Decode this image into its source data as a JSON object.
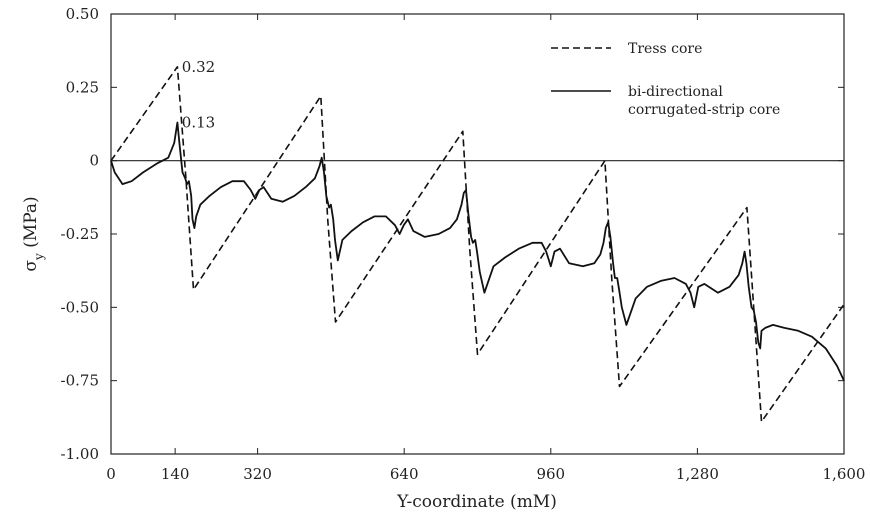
{
  "chart_data": {
    "type": "line",
    "title": "",
    "xlabel": "Y-coordinate (mM)",
    "ylabel": "σy (MPa)",
    "xlim": [
      0,
      1600
    ],
    "ylim": [
      -1.0,
      0.5
    ],
    "x_ticks": [
      0,
      140,
      320,
      640,
      960,
      1280,
      1600
    ],
    "x_tick_labels": [
      "0",
      "140",
      "320",
      "640",
      "960",
      "1,280",
      "1,600"
    ],
    "y_ticks": [
      0.5,
      0.25,
      0,
      -0.25,
      -0.5,
      -0.75,
      -1.0
    ],
    "y_tick_labels": [
      "0.50",
      "0.25",
      "0",
      "-0.25",
      "-0.50",
      "-0.75",
      "-1.00"
    ],
    "grid": false,
    "zero_line": true,
    "legend_position": "top-right",
    "annotations": [
      {
        "text": "0.32",
        "x": 148,
        "y": 0.32
      },
      {
        "text": "0.13",
        "x": 148,
        "y": 0.13
      }
    ],
    "series": [
      {
        "name": "Tress core",
        "style": "dashed",
        "color": "#111111",
        "x": [
          0,
          145,
          163,
          180,
          458,
          473,
          490,
          768,
          783,
          800,
          1078,
          1093,
          1110,
          1388,
          1403,
          1420,
          1600
        ],
        "y": [
          0,
          0.32,
          -0.05,
          -0.44,
          0.22,
          -0.2,
          -0.55,
          0.1,
          -0.3,
          -0.66,
          0.0,
          -0.4,
          -0.77,
          -0.16,
          -0.5,
          -0.89,
          -0.49
        ]
      },
      {
        "name": "bi-directional corrugated-strip core",
        "style": "solid",
        "color": "#111111",
        "x": [
          0,
          8,
          25,
          45,
          70,
          100,
          125,
          138,
          145,
          150,
          156,
          162,
          166,
          170,
          175,
          178,
          182,
          186,
          195,
          215,
          240,
          265,
          290,
          305,
          315,
          324,
          333,
          350,
          375,
          400,
          425,
          445,
          455,
          460,
          465,
          470,
          476,
          480,
          485,
          489,
          495,
          505,
          525,
          550,
          575,
          600,
          620,
          630,
          639,
          648,
          660,
          685,
          715,
          740,
          755,
          765,
          770,
          775,
          780,
          786,
          790,
          795,
          799,
          805,
          815,
          835,
          860,
          890,
          920,
          940,
          950,
          960,
          968,
          980,
          1000,
          1030,
          1055,
          1068,
          1075,
          1080,
          1085,
          1090,
          1096,
          1100,
          1105,
          1109,
          1115,
          1125,
          1145,
          1170,
          1200,
          1230,
          1255,
          1265,
          1273,
          1282,
          1295,
          1325,
          1350,
          1370,
          1378,
          1383,
          1387,
          1392,
          1398,
          1403,
          1408,
          1413,
          1417,
          1420,
          1428,
          1445,
          1470,
          1500,
          1530,
          1560,
          1585,
          1600
        ],
        "y": [
          0,
          -0.04,
          -0.08,
          -0.07,
          -0.04,
          -0.01,
          0.01,
          0.06,
          0.13,
          0.05,
          -0.04,
          -0.06,
          -0.08,
          -0.07,
          -0.12,
          -0.2,
          -0.23,
          -0.19,
          -0.15,
          -0.12,
          -0.09,
          -0.07,
          -0.07,
          -0.1,
          -0.13,
          -0.1,
          -0.09,
          -0.13,
          -0.14,
          -0.12,
          -0.09,
          -0.06,
          -0.02,
          0.01,
          -0.04,
          -0.12,
          -0.16,
          -0.15,
          -0.2,
          -0.27,
          -0.34,
          -0.27,
          -0.24,
          -0.21,
          -0.19,
          -0.19,
          -0.22,
          -0.25,
          -0.22,
          -0.2,
          -0.24,
          -0.26,
          -0.25,
          -0.23,
          -0.2,
          -0.15,
          -0.11,
          -0.1,
          -0.18,
          -0.26,
          -0.28,
          -0.27,
          -0.31,
          -0.38,
          -0.45,
          -0.36,
          -0.33,
          -0.3,
          -0.28,
          -0.28,
          -0.31,
          -0.36,
          -0.31,
          -0.3,
          -0.35,
          -0.36,
          -0.35,
          -0.32,
          -0.28,
          -0.23,
          -0.21,
          -0.26,
          -0.35,
          -0.4,
          -0.4,
          -0.44,
          -0.5,
          -0.56,
          -0.47,
          -0.43,
          -0.41,
          -0.4,
          -0.42,
          -0.45,
          -0.5,
          -0.43,
          -0.42,
          -0.45,
          -0.43,
          -0.39,
          -0.35,
          -0.31,
          -0.35,
          -0.43,
          -0.5,
          -0.51,
          -0.55,
          -0.62,
          -0.64,
          -0.58,
          -0.57,
          -0.56,
          -0.57,
          -0.58,
          -0.6,
          -0.64,
          -0.7,
          -0.75
        ]
      }
    ]
  }
}
